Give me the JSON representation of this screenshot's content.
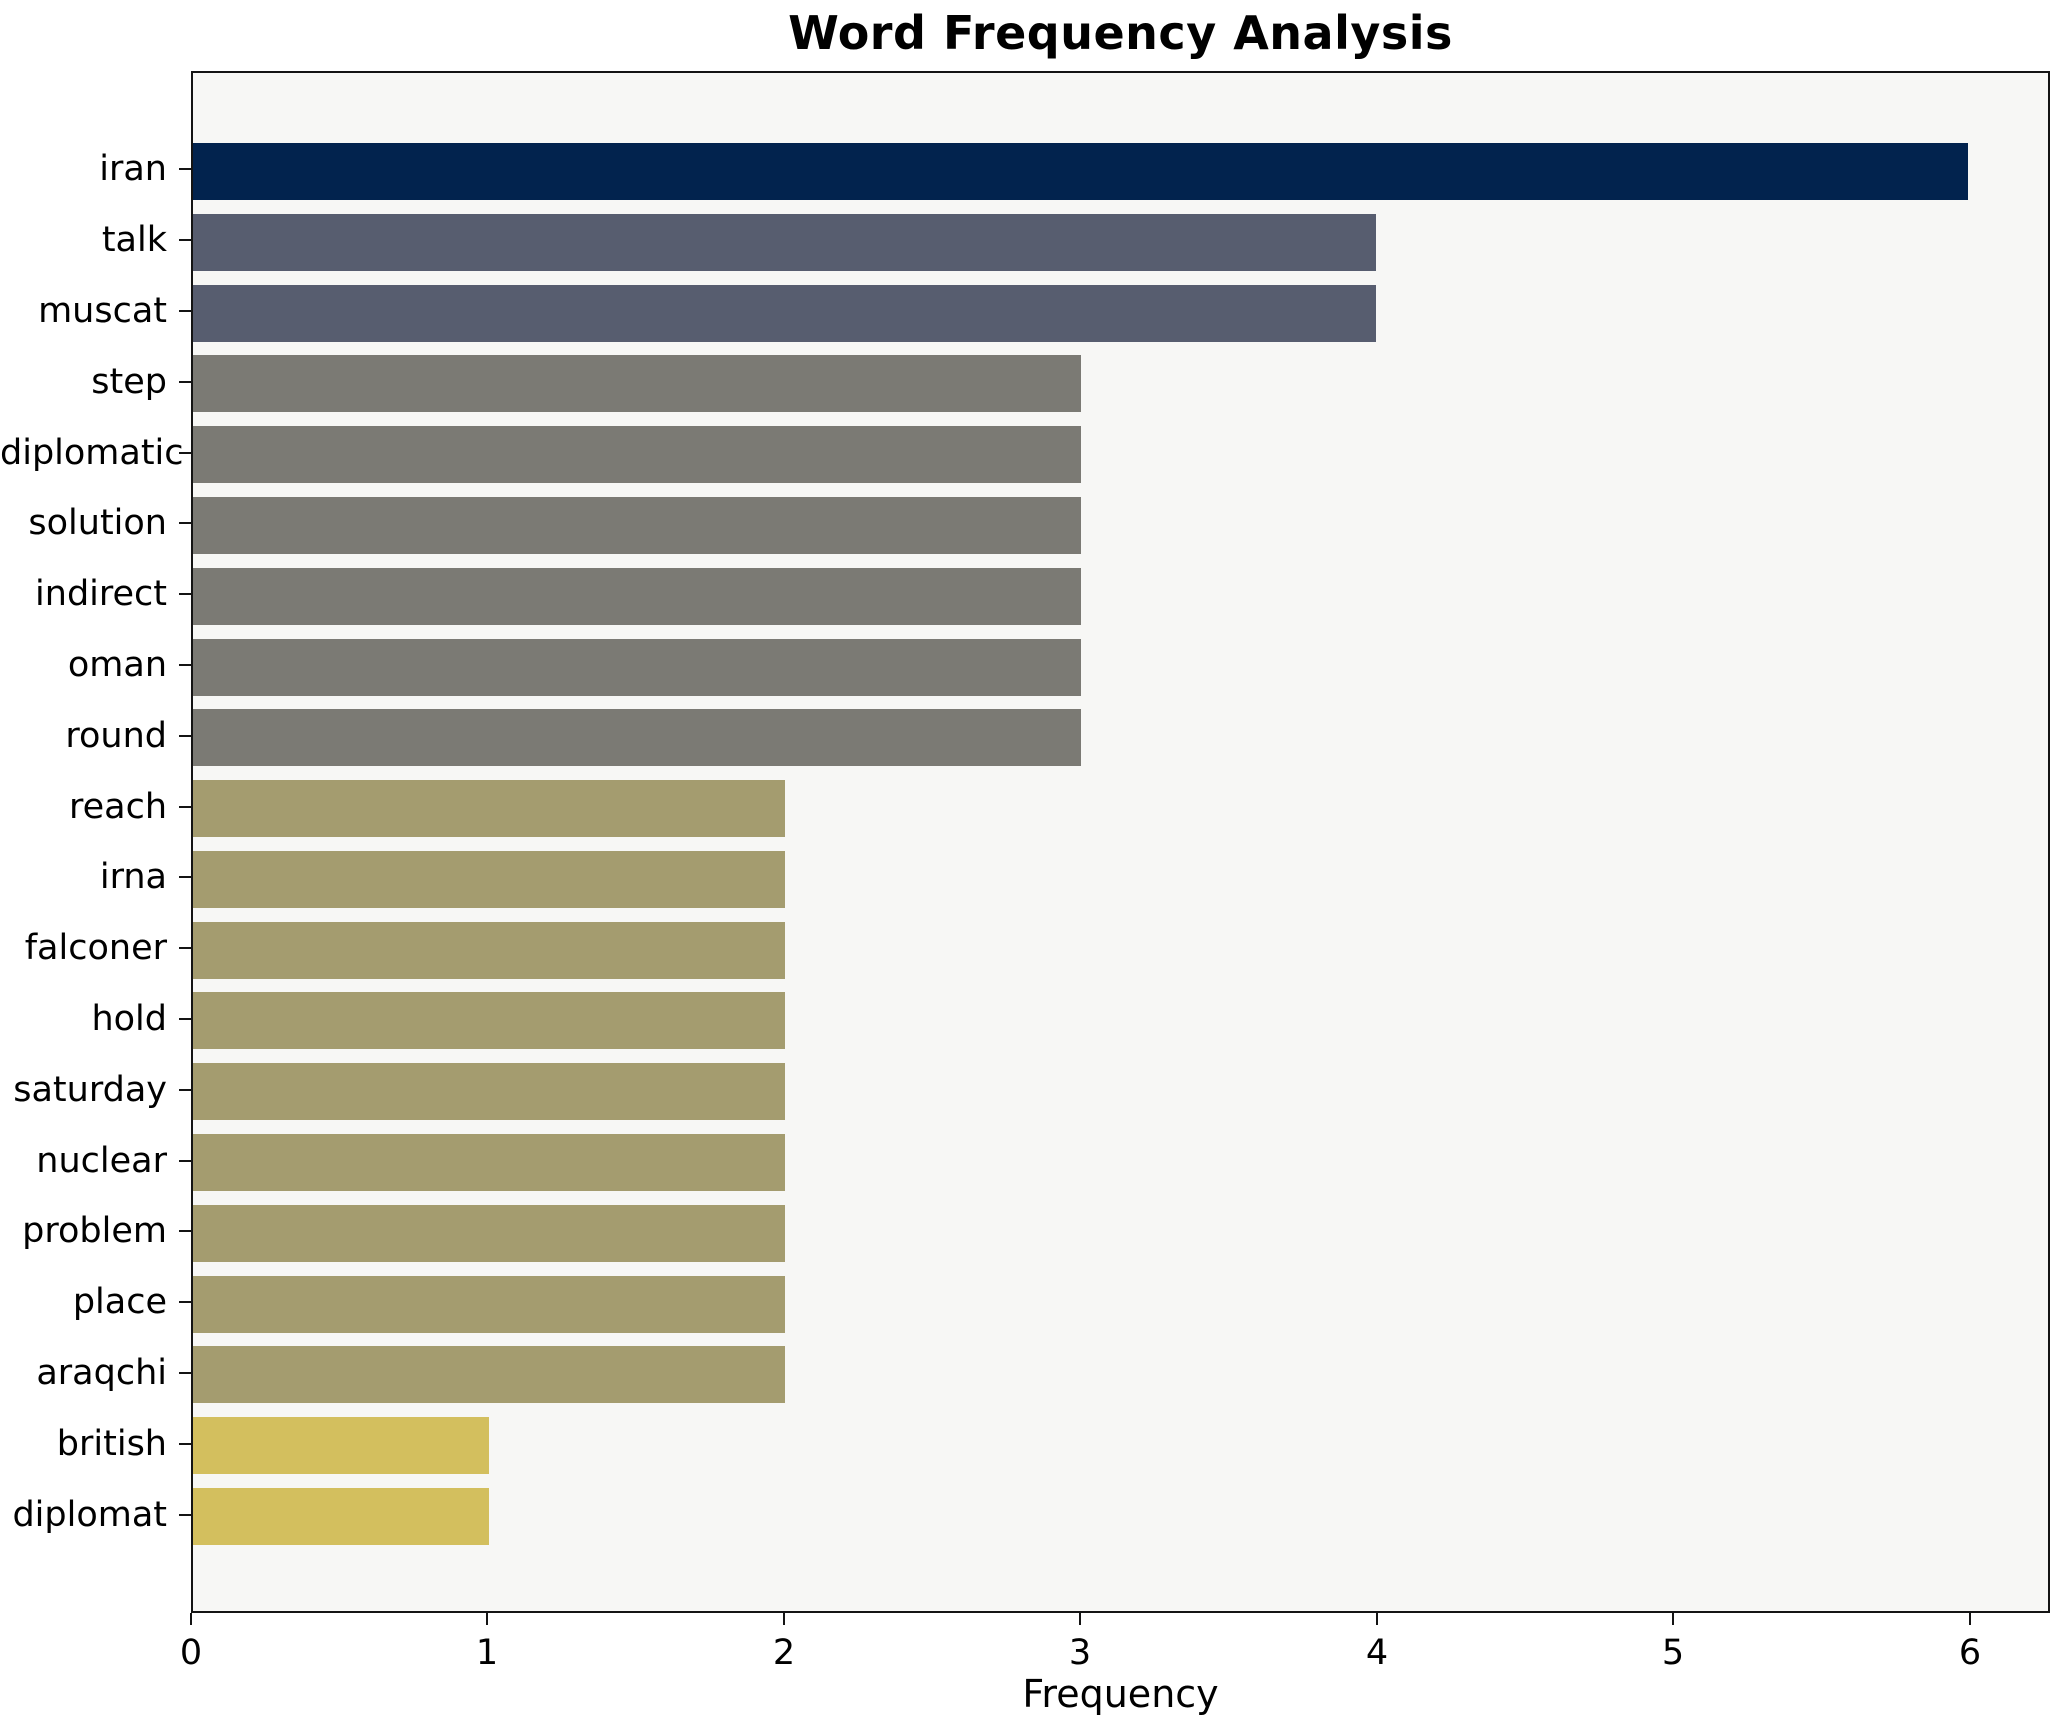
{
  "chart_data": {
    "type": "bar",
    "orientation": "horizontal",
    "title": "Word Frequency Analysis",
    "xlabel": "Frequency",
    "ylabel": "",
    "categories": [
      "iran",
      "talk",
      "muscat",
      "step",
      "diplomatic",
      "solution",
      "indirect",
      "oman",
      "round",
      "reach",
      "irna",
      "falconer",
      "hold",
      "saturday",
      "nuclear",
      "problem",
      "place",
      "araqchi",
      "british",
      "diplomat"
    ],
    "values": [
      6,
      4,
      4,
      3,
      3,
      3,
      3,
      3,
      3,
      2,
      2,
      2,
      2,
      2,
      2,
      2,
      2,
      2,
      1,
      1
    ],
    "xticks": [
      0,
      1,
      2,
      3,
      4,
      5,
      6
    ],
    "xlim": [
      0,
      6.27
    ],
    "grid": false,
    "legend": "none",
    "color_by_value": {
      "6": "#02234e",
      "4": "#575d6f",
      "3": "#7b7a74",
      "2": "#a49c6f",
      "1": "#d3bf5e"
    },
    "plot_background": "#f7f7f5",
    "figure_background": "#ffffff",
    "spine_color": "#141414",
    "title_color": "#000000",
    "tick_label_color": "#000000"
  }
}
